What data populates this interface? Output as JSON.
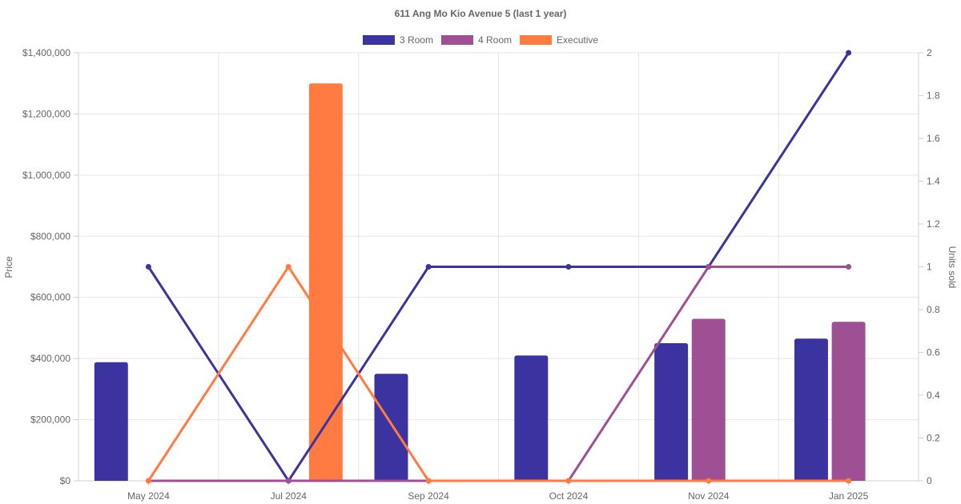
{
  "chart_data": {
    "type": "bar",
    "title": "611 Ang Mo Kio Avenue 5 (last 1 year)",
    "categories": [
      "May 2024",
      "Jul 2024",
      "Sep 2024",
      "Oct 2024",
      "Nov 2024",
      "Jan 2025"
    ],
    "bar_series": [
      {
        "name": "3 Room",
        "color": "#3a33a0",
        "values": [
          388000,
          null,
          350000,
          410000,
          450000,
          465000
        ]
      },
      {
        "name": "4 Room",
        "color": "#9f5095",
        "values": [
          null,
          null,
          null,
          null,
          530000,
          520000
        ]
      },
      {
        "name": "Executive",
        "color": "#ff7b42",
        "values": [
          null,
          1300000,
          null,
          null,
          null,
          null
        ]
      }
    ],
    "line_series": [
      {
        "name": "3 Room",
        "color": "#3a33a0",
        "values": [
          1,
          0,
          1,
          1,
          1,
          2
        ]
      },
      {
        "name": "4 Room",
        "color": "#9f5095",
        "values": [
          0,
          0,
          0,
          0,
          1,
          1
        ]
      },
      {
        "name": "Executive",
        "color": "#ff7b42",
        "values": [
          0,
          1,
          0,
          0,
          0,
          0
        ]
      }
    ],
    "y_left": {
      "label": "Price",
      "range": [
        0,
        1400000
      ],
      "ticks": [
        0,
        200000,
        400000,
        600000,
        800000,
        1000000,
        1200000,
        1400000
      ],
      "tick_labels": [
        "$0",
        "$200,000",
        "$400,000",
        "$600,000",
        "$800,000",
        "$1,000,000",
        "$1,200,000",
        "$1,400,000"
      ]
    },
    "y_right": {
      "label": "Units sold",
      "range": [
        0,
        2
      ],
      "ticks": [
        0,
        0.2,
        0.4,
        0.6,
        0.8,
        1,
        1.2,
        1.4,
        1.6,
        1.8,
        2
      ],
      "tick_labels": [
        "0",
        "0.2",
        "0.4",
        "0.6",
        "0.8",
        "1",
        "1.2",
        "1.4",
        "1.6",
        "1.8",
        "2"
      ]
    },
    "legend": {
      "position": "top",
      "items": [
        {
          "name": "3 Room",
          "color": "#3a33a0"
        },
        {
          "name": "4 Room",
          "color": "#9f5095"
        },
        {
          "name": "Executive",
          "color": "#ff7b42"
        }
      ]
    },
    "grid": true
  }
}
